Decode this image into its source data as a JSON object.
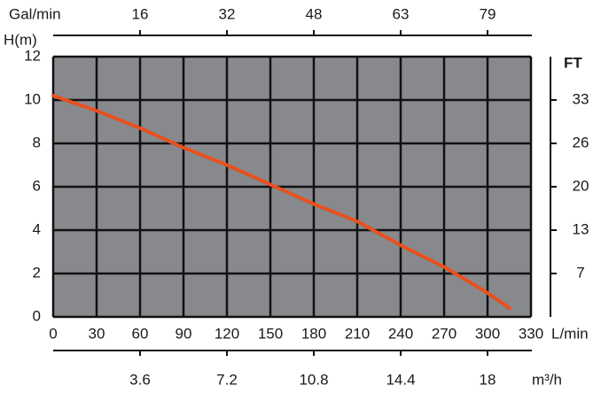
{
  "chart_data": {
    "type": "line",
    "y_label": "H(m)",
    "x_label": "L/min",
    "x2_label": "Gal/min",
    "x3_label": "m³/h",
    "y2_label": "FT",
    "x": [
      0,
      30,
      60,
      90,
      120,
      150,
      180,
      210,
      240,
      270,
      300,
      315
    ],
    "series": [
      {
        "color": "#e8501e",
        "values": [
          10.2,
          9.5,
          8.7,
          7.8,
          7.0,
          6.1,
          5.2,
          4.4,
          3.3,
          2.3,
          1.1,
          0.4
        ]
      }
    ],
    "xlim": [
      0,
      330
    ],
    "xticks": [
      0,
      30,
      60,
      90,
      120,
      150,
      180,
      210,
      240,
      270,
      300,
      330
    ],
    "ylim": [
      0,
      12
    ],
    "yticks": [
      0,
      2,
      4,
      6,
      8,
      10,
      12
    ],
    "x2lim": [
      0,
      87.17
    ],
    "x2ticks": [
      {
        "value": 15.85,
        "label": "16"
      },
      {
        "value": 31.7,
        "label": "32"
      },
      {
        "value": 47.55,
        "label": "48"
      },
      {
        "value": 63.4,
        "label": "63"
      },
      {
        "value": 79.25,
        "label": "79"
      }
    ],
    "x3lim": [
      0,
      19.8
    ],
    "x3ticks": [
      3.6,
      7.2,
      10.8,
      14.4,
      18
    ],
    "y2lim": [
      0,
      39.37
    ],
    "y2ticks": [
      {
        "value": 6.56,
        "label": "7"
      },
      {
        "value": 13.12,
        "label": "13"
      },
      {
        "value": 19.69,
        "label": "20"
      },
      {
        "value": 26.25,
        "label": "26"
      },
      {
        "value": 32.81,
        "label": "33"
      }
    ],
    "grid": true,
    "plot_color": "#87898d"
  }
}
